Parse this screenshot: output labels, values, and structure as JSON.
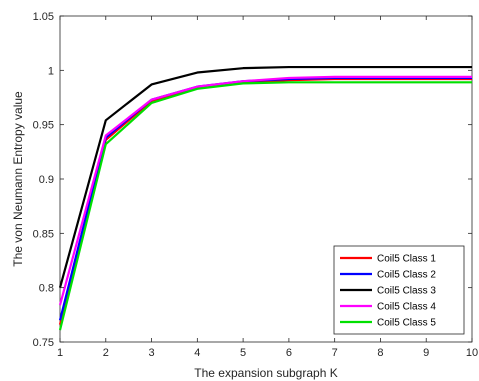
{
  "chart_data": {
    "type": "line",
    "title": "",
    "xlabel": "The expansion subgraph K",
    "ylabel": "The von Neumann Entropy value",
    "x": [
      1,
      2,
      3,
      4,
      5,
      6,
      7,
      8,
      9,
      10
    ],
    "xlim": [
      1,
      10
    ],
    "ylim": [
      0.75,
      1.05
    ],
    "xticks": [
      "1",
      "2",
      "3",
      "4",
      "5",
      "6",
      "7",
      "8",
      "9",
      "10"
    ],
    "yticks": [
      "0.75",
      "0.8",
      "0.85",
      "0.9",
      "0.95",
      "1",
      "1.05"
    ],
    "grid": false,
    "legend_position": "bottom-right",
    "series": [
      {
        "name": "Coil5 Class 1",
        "color": "#ff0000",
        "values": [
          0.766,
          0.936,
          0.972,
          0.984,
          0.989,
          0.991,
          0.992,
          0.992,
          0.992,
          0.992
        ]
      },
      {
        "name": "Coil5 Class 2",
        "color": "#0000ff",
        "values": [
          0.77,
          0.938,
          0.973,
          0.985,
          0.99,
          0.992,
          0.993,
          0.993,
          0.993,
          0.993
        ]
      },
      {
        "name": "Coil5 Class 3",
        "color": "#000000",
        "values": [
          0.8,
          0.954,
          0.987,
          0.998,
          1.002,
          1.003,
          1.003,
          1.003,
          1.003,
          1.003
        ]
      },
      {
        "name": "Coil5 Class 4",
        "color": "#ff00ff",
        "values": [
          0.784,
          0.94,
          0.973,
          0.985,
          0.99,
          0.993,
          0.994,
          0.994,
          0.994,
          0.994
        ]
      },
      {
        "name": "Coil5 Class 5",
        "color": "#00e000",
        "values": [
          0.761,
          0.932,
          0.97,
          0.983,
          0.988,
          0.989,
          0.989,
          0.989,
          0.989,
          0.989
        ]
      }
    ]
  }
}
